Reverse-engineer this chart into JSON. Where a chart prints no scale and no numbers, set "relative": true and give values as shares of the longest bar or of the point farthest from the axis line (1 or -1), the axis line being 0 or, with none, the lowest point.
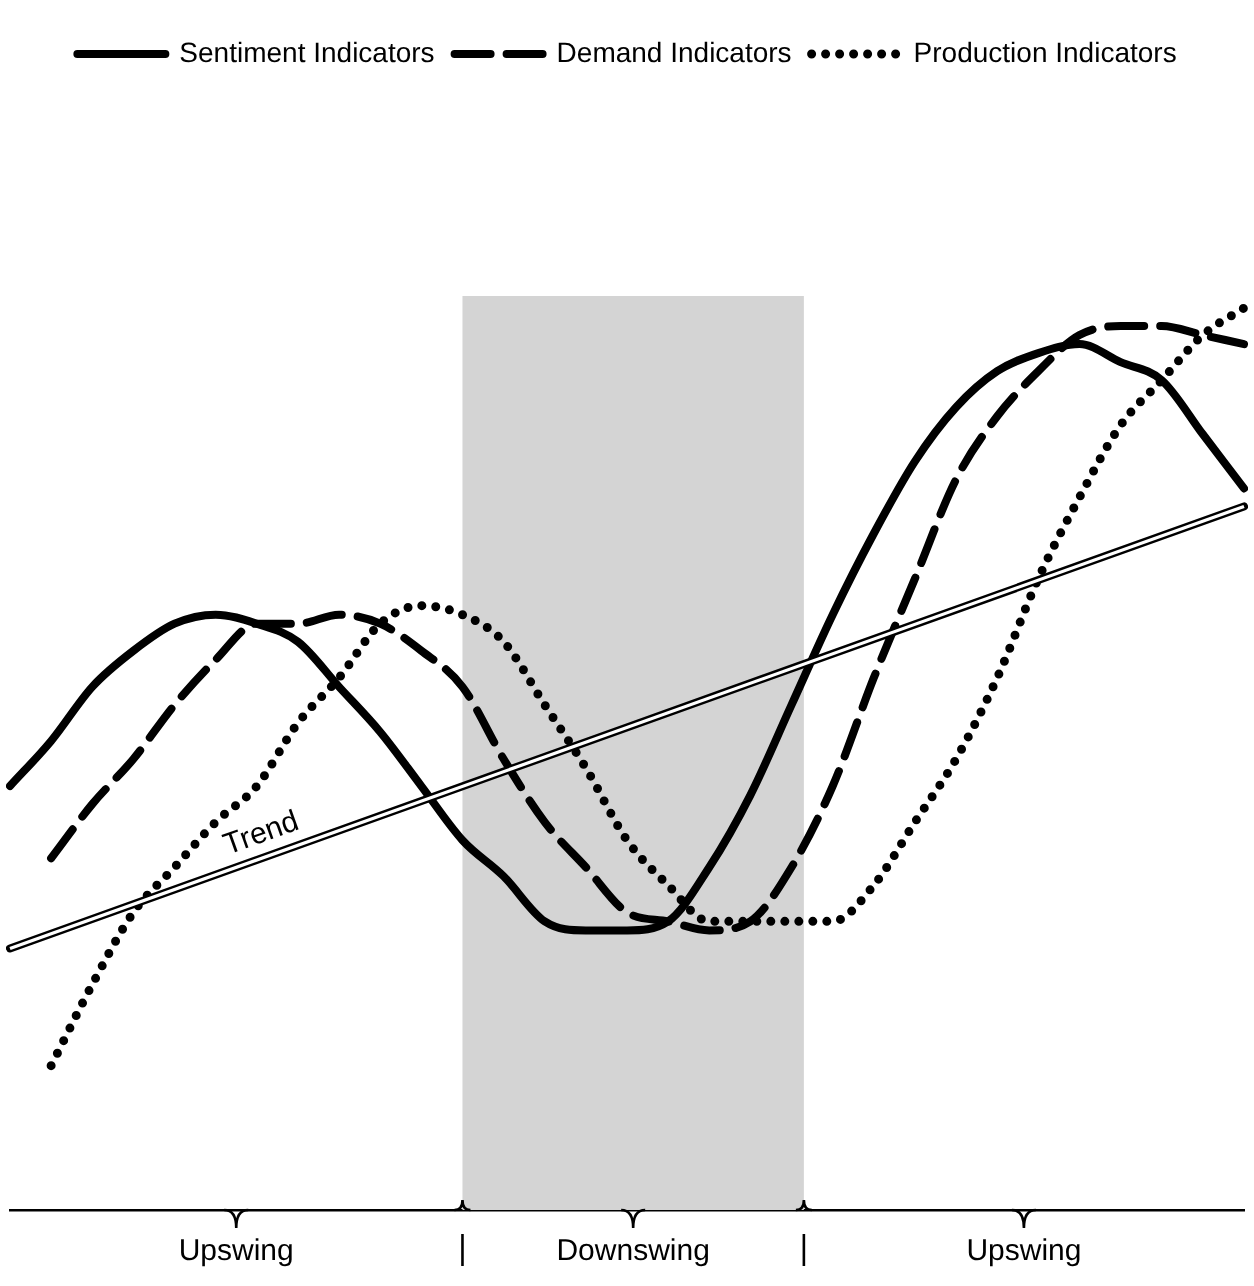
{
  "chart_data": {
    "type": "line",
    "relative": true,
    "legend": "top",
    "marker": "none",
    "tick_labels": false,
    "categories": [
      null,
      null,
      null,
      null,
      null,
      null,
      null,
      null,
      null,
      null,
      null,
      null,
      null,
      null,
      null,
      null,
      null,
      null,
      null,
      null,
      null,
      null,
      null,
      null,
      null,
      null,
      null,
      null,
      null,
      null,
      null
    ],
    "series": [
      {
        "name": "Sentiment Indicators",
        "color": "#000000",
        "line_style": "solid",
        "values": [
          0.47,
          0.52,
          0.58,
          0.62,
          0.65,
          0.66,
          0.65,
          0.63,
          0.58,
          0.53,
          0.47,
          0.41,
          0.37,
          0.32,
          0.31,
          0.31,
          0.32,
          0.38,
          0.46,
          0.56,
          0.66,
          0.75,
          0.83,
          0.89,
          0.93,
          0.95,
          0.96,
          0.94,
          0.92,
          0.86,
          0.8
        ]
      },
      {
        "name": "Demand Indicators",
        "color": "#000000",
        "line_style": "dashed",
        "values": [
          null,
          0.39,
          0.45,
          0.5,
          0.56,
          0.61,
          0.65,
          0.65,
          0.66,
          0.65,
          0.62,
          0.58,
          0.5,
          0.43,
          0.38,
          0.33,
          0.32,
          0.31,
          0.32,
          0.38,
          0.47,
          0.59,
          0.7,
          0.81,
          0.88,
          0.93,
          0.97,
          0.98,
          0.98,
          0.97,
          0.96
        ]
      },
      {
        "name": "Production Indicators",
        "color": "#000000",
        "line_style": "dotted",
        "values": [
          null,
          0.16,
          0.25,
          0.33,
          0.38,
          0.43,
          0.47,
          0.54,
          0.59,
          0.65,
          0.67,
          0.66,
          0.63,
          0.56,
          0.49,
          0.41,
          0.36,
          0.32,
          0.32,
          0.32,
          0.32,
          0.36,
          0.43,
          0.5,
          0.59,
          0.7,
          0.79,
          0.87,
          0.92,
          0.97,
          1
        ]
      },
      {
        "color": "#000000",
        "line_style": "solid",
        "values": [
          0.29,
          null,
          null,
          null,
          null,
          null,
          null,
          null,
          null,
          null,
          null,
          null,
          null,
          null,
          null,
          null,
          null,
          null,
          null,
          null,
          null,
          null,
          null,
          null,
          null,
          null,
          null,
          null,
          null,
          null,
          0.78
        ]
      }
    ],
    "annotations": [
      "Trend",
      "Upswing",
      "Downswing",
      "Upswing"
    ]
  }
}
